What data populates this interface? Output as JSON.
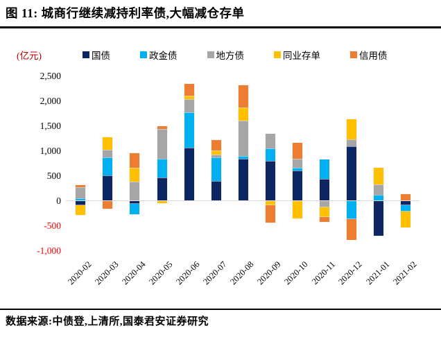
{
  "title": "图 11:  城商行继续减持利率债,大幅减仓存单",
  "unit_label": "(亿元)",
  "source": "数据来源:中债登,上清所,国泰君安证券研究",
  "colors": {
    "negative_tick": "#ff0000",
    "unit_label": "#c00000",
    "zero_axis_line": "#d9d9d9",
    "title_rule": "#000000"
  },
  "chart_data": {
    "type": "bar",
    "stacked": true,
    "title": "图 11:  城商行继续减持利率债,大幅减仓存单",
    "ylabel": "(亿元)",
    "xlabel": "",
    "ylim": [
      -1000,
      2500
    ],
    "ytick_step": 500,
    "grid": false,
    "legend_position": "top",
    "categories": [
      "2020-02",
      "2020-03",
      "2020-04",
      "2020-05",
      "2020-06",
      "2020-07",
      "2020-08",
      "2020-09",
      "2020-10",
      "2020-11",
      "2020-12",
      "2021-01",
      "2021-02"
    ],
    "series": [
      {
        "name": "国债",
        "color": "#0c2663",
        "values": [
          -85,
          500,
          -55,
          465,
          1060,
          395,
          835,
          790,
          600,
          425,
          1080,
          -700,
          -85
        ]
      },
      {
        "name": "政金债",
        "color": "#00b0f0",
        "values": [
          45,
          355,
          -210,
          370,
          710,
          465,
          55,
          255,
          55,
          395,
          -355,
          115,
          -130
        ]
      },
      {
        "name": "地方债",
        "color": "#a6a6a6",
        "values": [
          215,
          160,
          370,
          590,
          255,
          60,
          710,
          290,
          175,
          -120,
          145,
          210,
          0
        ]
      },
      {
        "name": "同业存单",
        "color": "#ffc000",
        "values": [
          -195,
          255,
          280,
          -45,
          70,
          80,
          255,
          -85,
          -350,
          -195,
          395,
          325,
          -315
        ]
      },
      {
        "name": "信用债",
        "color": "#ed7d31",
        "values": [
          40,
          -150,
          300,
          65,
          235,
          210,
          450,
          -345,
          325,
          -95,
          -420,
          0,
          130
        ]
      }
    ]
  }
}
